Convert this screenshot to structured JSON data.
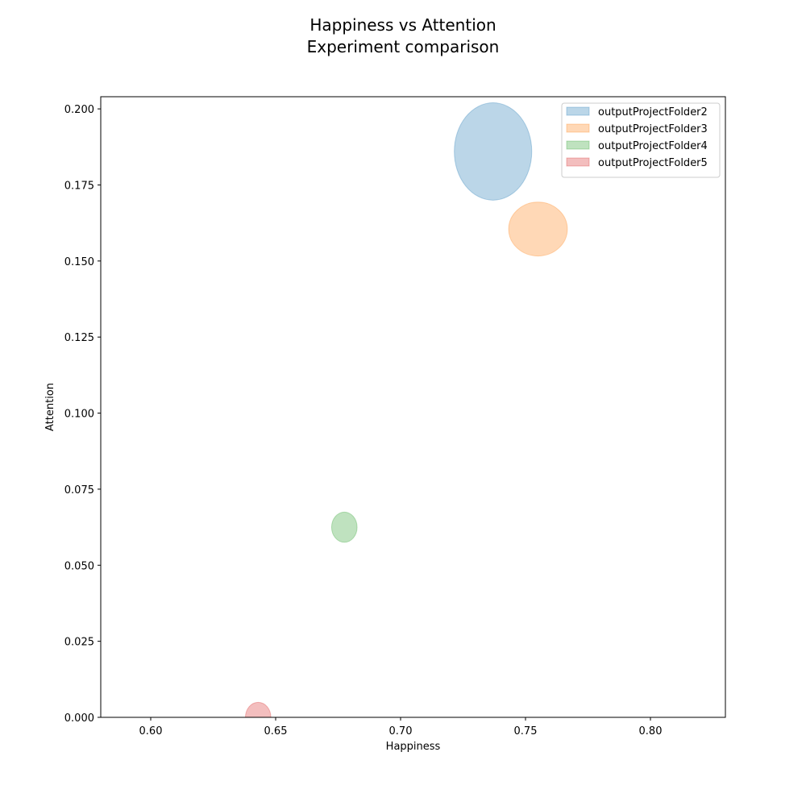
{
  "chart_data": {
    "type": "scatter",
    "title": "Happiness vs Attention",
    "subtitle": "Experiment comparison",
    "xlabel": "Happiness",
    "ylabel": "Attention",
    "xlim": [
      0.58,
      0.83
    ],
    "ylim": [
      0.0,
      0.204
    ],
    "xticks": [
      0.6,
      0.65,
      0.7,
      0.75,
      0.8
    ],
    "xtick_labels": [
      "0.60",
      "0.65",
      "0.70",
      "0.75",
      "0.80"
    ],
    "yticks": [
      0.0,
      0.025,
      0.05,
      0.075,
      0.1,
      0.125,
      0.15,
      0.175,
      0.2
    ],
    "ytick_labels": [
      "0.000",
      "0.025",
      "0.050",
      "0.075",
      "0.100",
      "0.125",
      "0.150",
      "0.175",
      "0.200"
    ],
    "grid": false,
    "legend_position": "top-right",
    "series": [
      {
        "name": "outputProjectFolder2",
        "x": 0.737,
        "y": 0.186,
        "width": 0.031,
        "height": 0.032,
        "color": "#1f77b4"
      },
      {
        "name": "outputProjectFolder3",
        "x": 0.755,
        "y": 0.1605,
        "width": 0.0235,
        "height": 0.0177,
        "color": "#ff7f0e"
      },
      {
        "name": "outputProjectFolder4",
        "x": 0.6775,
        "y": 0.0625,
        "width": 0.0102,
        "height": 0.0099,
        "color": "#2ca02c"
      },
      {
        "name": "outputProjectFolder5",
        "x": 0.643,
        "y": 0.0,
        "width": 0.0102,
        "height": 0.0099,
        "color": "#d62728"
      }
    ],
    "marker_alpha": 0.3
  }
}
